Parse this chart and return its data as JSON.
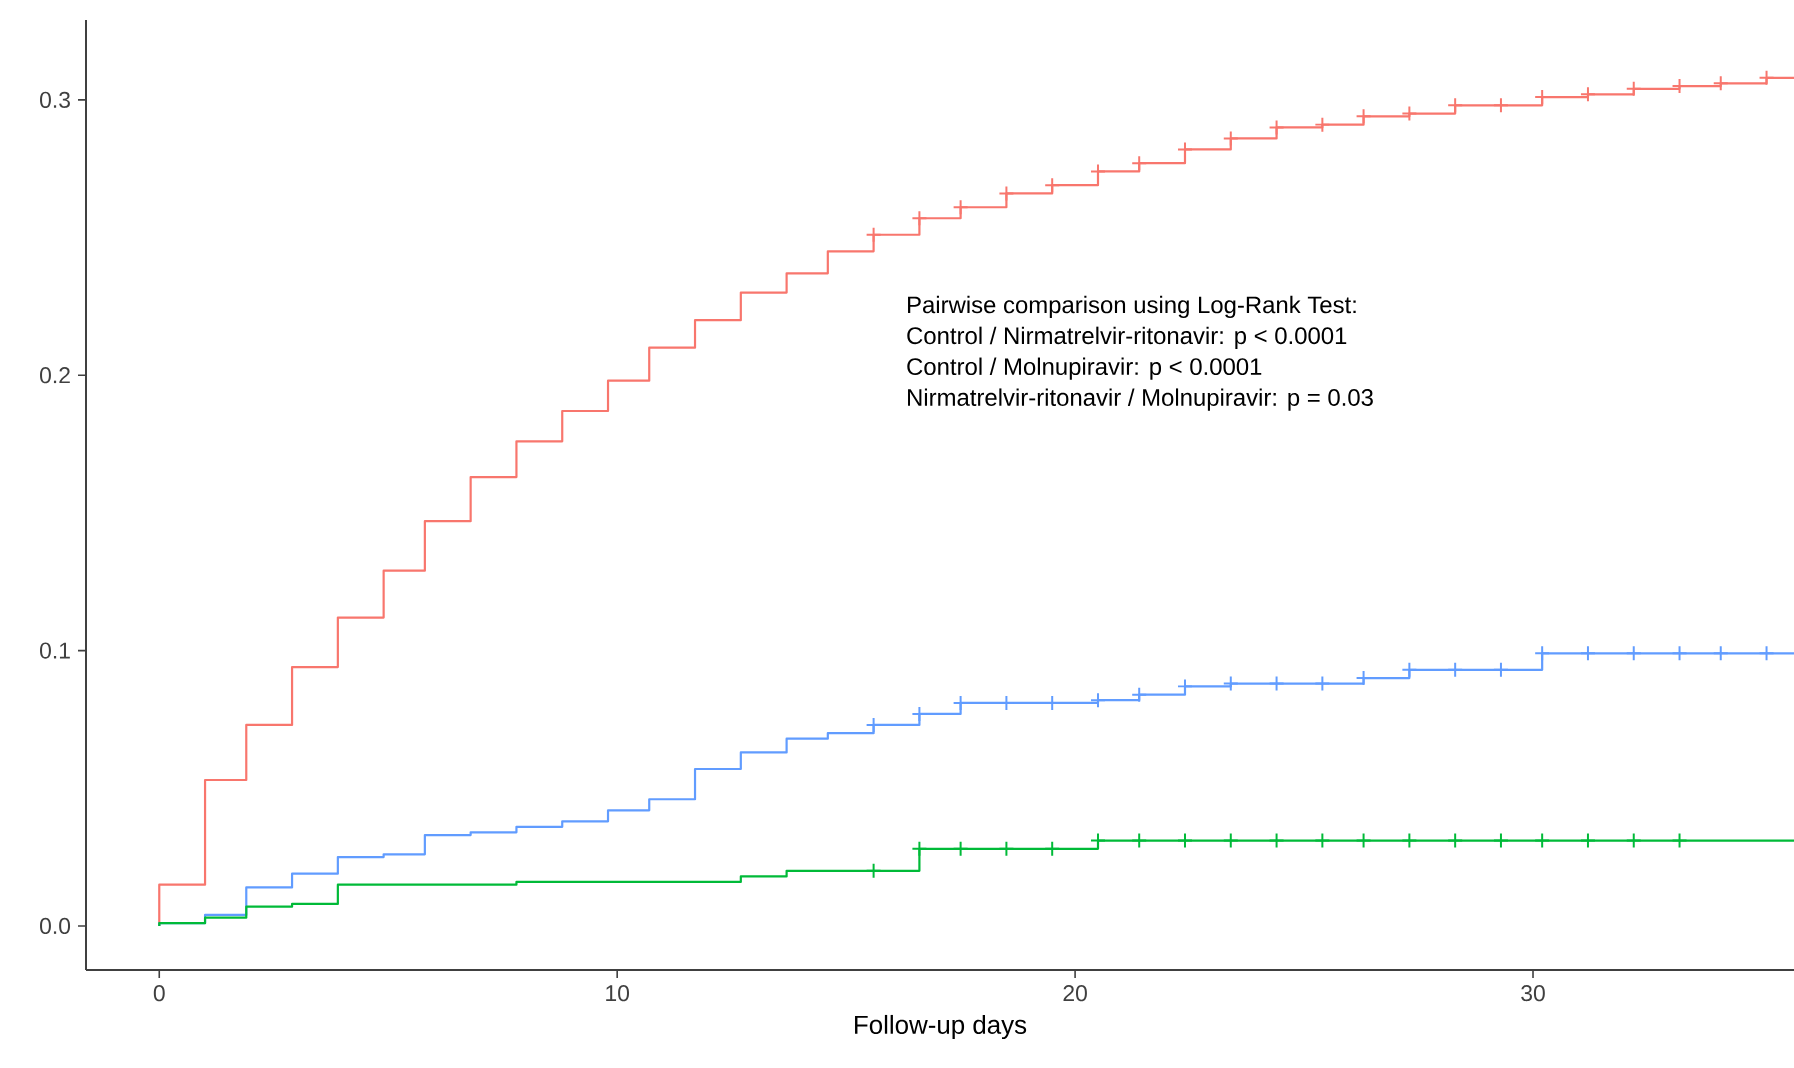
{
  "chart_data": {
    "type": "step",
    "xlabel": "Follow-up days",
    "annotations": [
      "Pairwise comparison using Log-Rank Test:",
      "Control / Nirmatrelvir-ritonavir:  p < 0.0001",
      "Control / Molnupiravir:  p < 0.0001",
      "Nirmatrelvir-ritonavir  / Molnupiravir:  p = 0.03"
    ],
    "x": [
      0,
      0,
      1.0,
      1.9,
      2.9,
      3.9,
      4.9,
      5.8,
      6.8,
      7.8,
      8.8,
      9.8,
      10.7,
      11.7,
      12.7,
      13.7,
      14.6,
      15.6,
      16.6,
      17.5,
      18.5,
      19.5,
      20.5,
      21.4,
      22.4,
      23.4,
      24.4,
      25.4,
      26.3,
      27.3,
      28.3,
      29.3,
      30.2,
      31.2,
      32.2,
      33.2,
      34.1,
      35.1,
      35.7
    ],
    "series": [
      {
        "color": "#f8766d",
        "values": [
          0,
          0.015,
          0.053,
          0.073,
          0.094,
          0.112,
          0.129,
          0.147,
          0.163,
          0.176,
          0.187,
          0.198,
          0.21,
          0.22,
          0.23,
          0.237,
          0.245,
          0.251,
          0.257,
          0.261,
          0.266,
          0.269,
          0.274,
          0.277,
          0.282,
          0.286,
          0.29,
          0.291,
          0.294,
          0.295,
          0.298,
          0.298,
          0.301,
          0.302,
          0.304,
          0.305,
          0.306,
          0.308,
          0.308
        ]
      },
      {
        "color": "#619cff",
        "values": [
          0,
          0.001,
          0.004,
          0.014,
          0.019,
          0.025,
          0.026,
          0.033,
          0.034,
          0.036,
          0.038,
          0.042,
          0.046,
          0.057,
          0.063,
          0.068,
          0.07,
          0.073,
          0.077,
          0.081,
          0.081,
          0.081,
          0.082,
          0.084,
          0.087,
          0.088,
          0.088,
          0.088,
          0.09,
          0.093,
          0.093,
          0.093,
          0.099,
          0.099,
          0.099,
          0.099,
          0.099,
          0.099,
          0.099
        ]
      },
      {
        "color": "#00ba38",
        "values": [
          0,
          0.001,
          0.003,
          0.007,
          0.008,
          0.015,
          0.015,
          0.015,
          0.015,
          0.016,
          0.016,
          0.016,
          0.016,
          0.016,
          0.018,
          0.02,
          0.02,
          0.02,
          0.028,
          0.028,
          0.028,
          0.028,
          0.031,
          0.031,
          0.031,
          0.031,
          0.031,
          0.031,
          0.031,
          0.031,
          0.031,
          0.031,
          0.031,
          0.031,
          0.031,
          0.031,
          0.031,
          0.031,
          0.031
        ]
      },
      {
        "type": "scatter",
        "marker": "cross",
        "color": "#f8766d",
        "x": [
          15.6,
          16.6,
          17.5,
          18.5,
          19.5,
          20.5,
          21.4,
          22.4,
          23.4,
          24.4,
          25.4,
          26.3,
          27.3,
          28.3,
          29.3,
          30.2,
          31.2,
          32.2,
          33.2,
          34.1,
          35.1
        ],
        "values": [
          0.251,
          0.257,
          0.261,
          0.266,
          0.269,
          0.274,
          0.277,
          0.282,
          0.286,
          0.29,
          0.291,
          0.294,
          0.295,
          0.298,
          0.298,
          0.301,
          0.302,
          0.304,
          0.305,
          0.306,
          0.308
        ]
      },
      {
        "type": "scatter",
        "marker": "cross",
        "color": "#619cff",
        "x": [
          15.6,
          16.6,
          17.5,
          18.5,
          19.5,
          20.5,
          21.4,
          22.4,
          23.4,
          24.4,
          25.4,
          26.3,
          27.3,
          28.3,
          29.3,
          30.2,
          31.2,
          32.2,
          33.2,
          34.1,
          35.1
        ],
        "values": [
          0.073,
          0.077,
          0.081,
          0.081,
          0.081,
          0.082,
          0.084,
          0.087,
          0.088,
          0.088,
          0.088,
          0.09,
          0.093,
          0.093,
          0.093,
          0.099,
          0.099,
          0.099,
          0.099,
          0.099,
          0.099
        ]
      },
      {
        "type": "scatter",
        "marker": "cross",
        "color": "#00ba38",
        "x": [
          15.6,
          16.6,
          17.5,
          18.5,
          19.5,
          20.5,
          21.4,
          22.4,
          23.4,
          24.4,
          25.4,
          26.3,
          27.3,
          28.3,
          29.3,
          30.2,
          31.2,
          32.2,
          33.2
        ],
        "values": [
          0.02,
          0.028,
          0.028,
          0.028,
          0.028,
          0.031,
          0.031,
          0.031,
          0.031,
          0.031,
          0.031,
          0.031,
          0.031,
          0.031,
          0.031,
          0.031,
          0.031,
          0.031,
          0.031
        ]
      }
    ],
    "xlim": [
      -1.6,
      35.7
    ],
    "ylim": [
      -0.016,
      0.329
    ],
    "xticks": [
      0,
      10,
      20,
      30
    ],
    "yticks": [
      {
        "value": 0,
        "label": "0.0"
      },
      0.1,
      0.2,
      0.3
    ],
    "grid": false,
    "marker": "none",
    "line_style": "solid"
  }
}
